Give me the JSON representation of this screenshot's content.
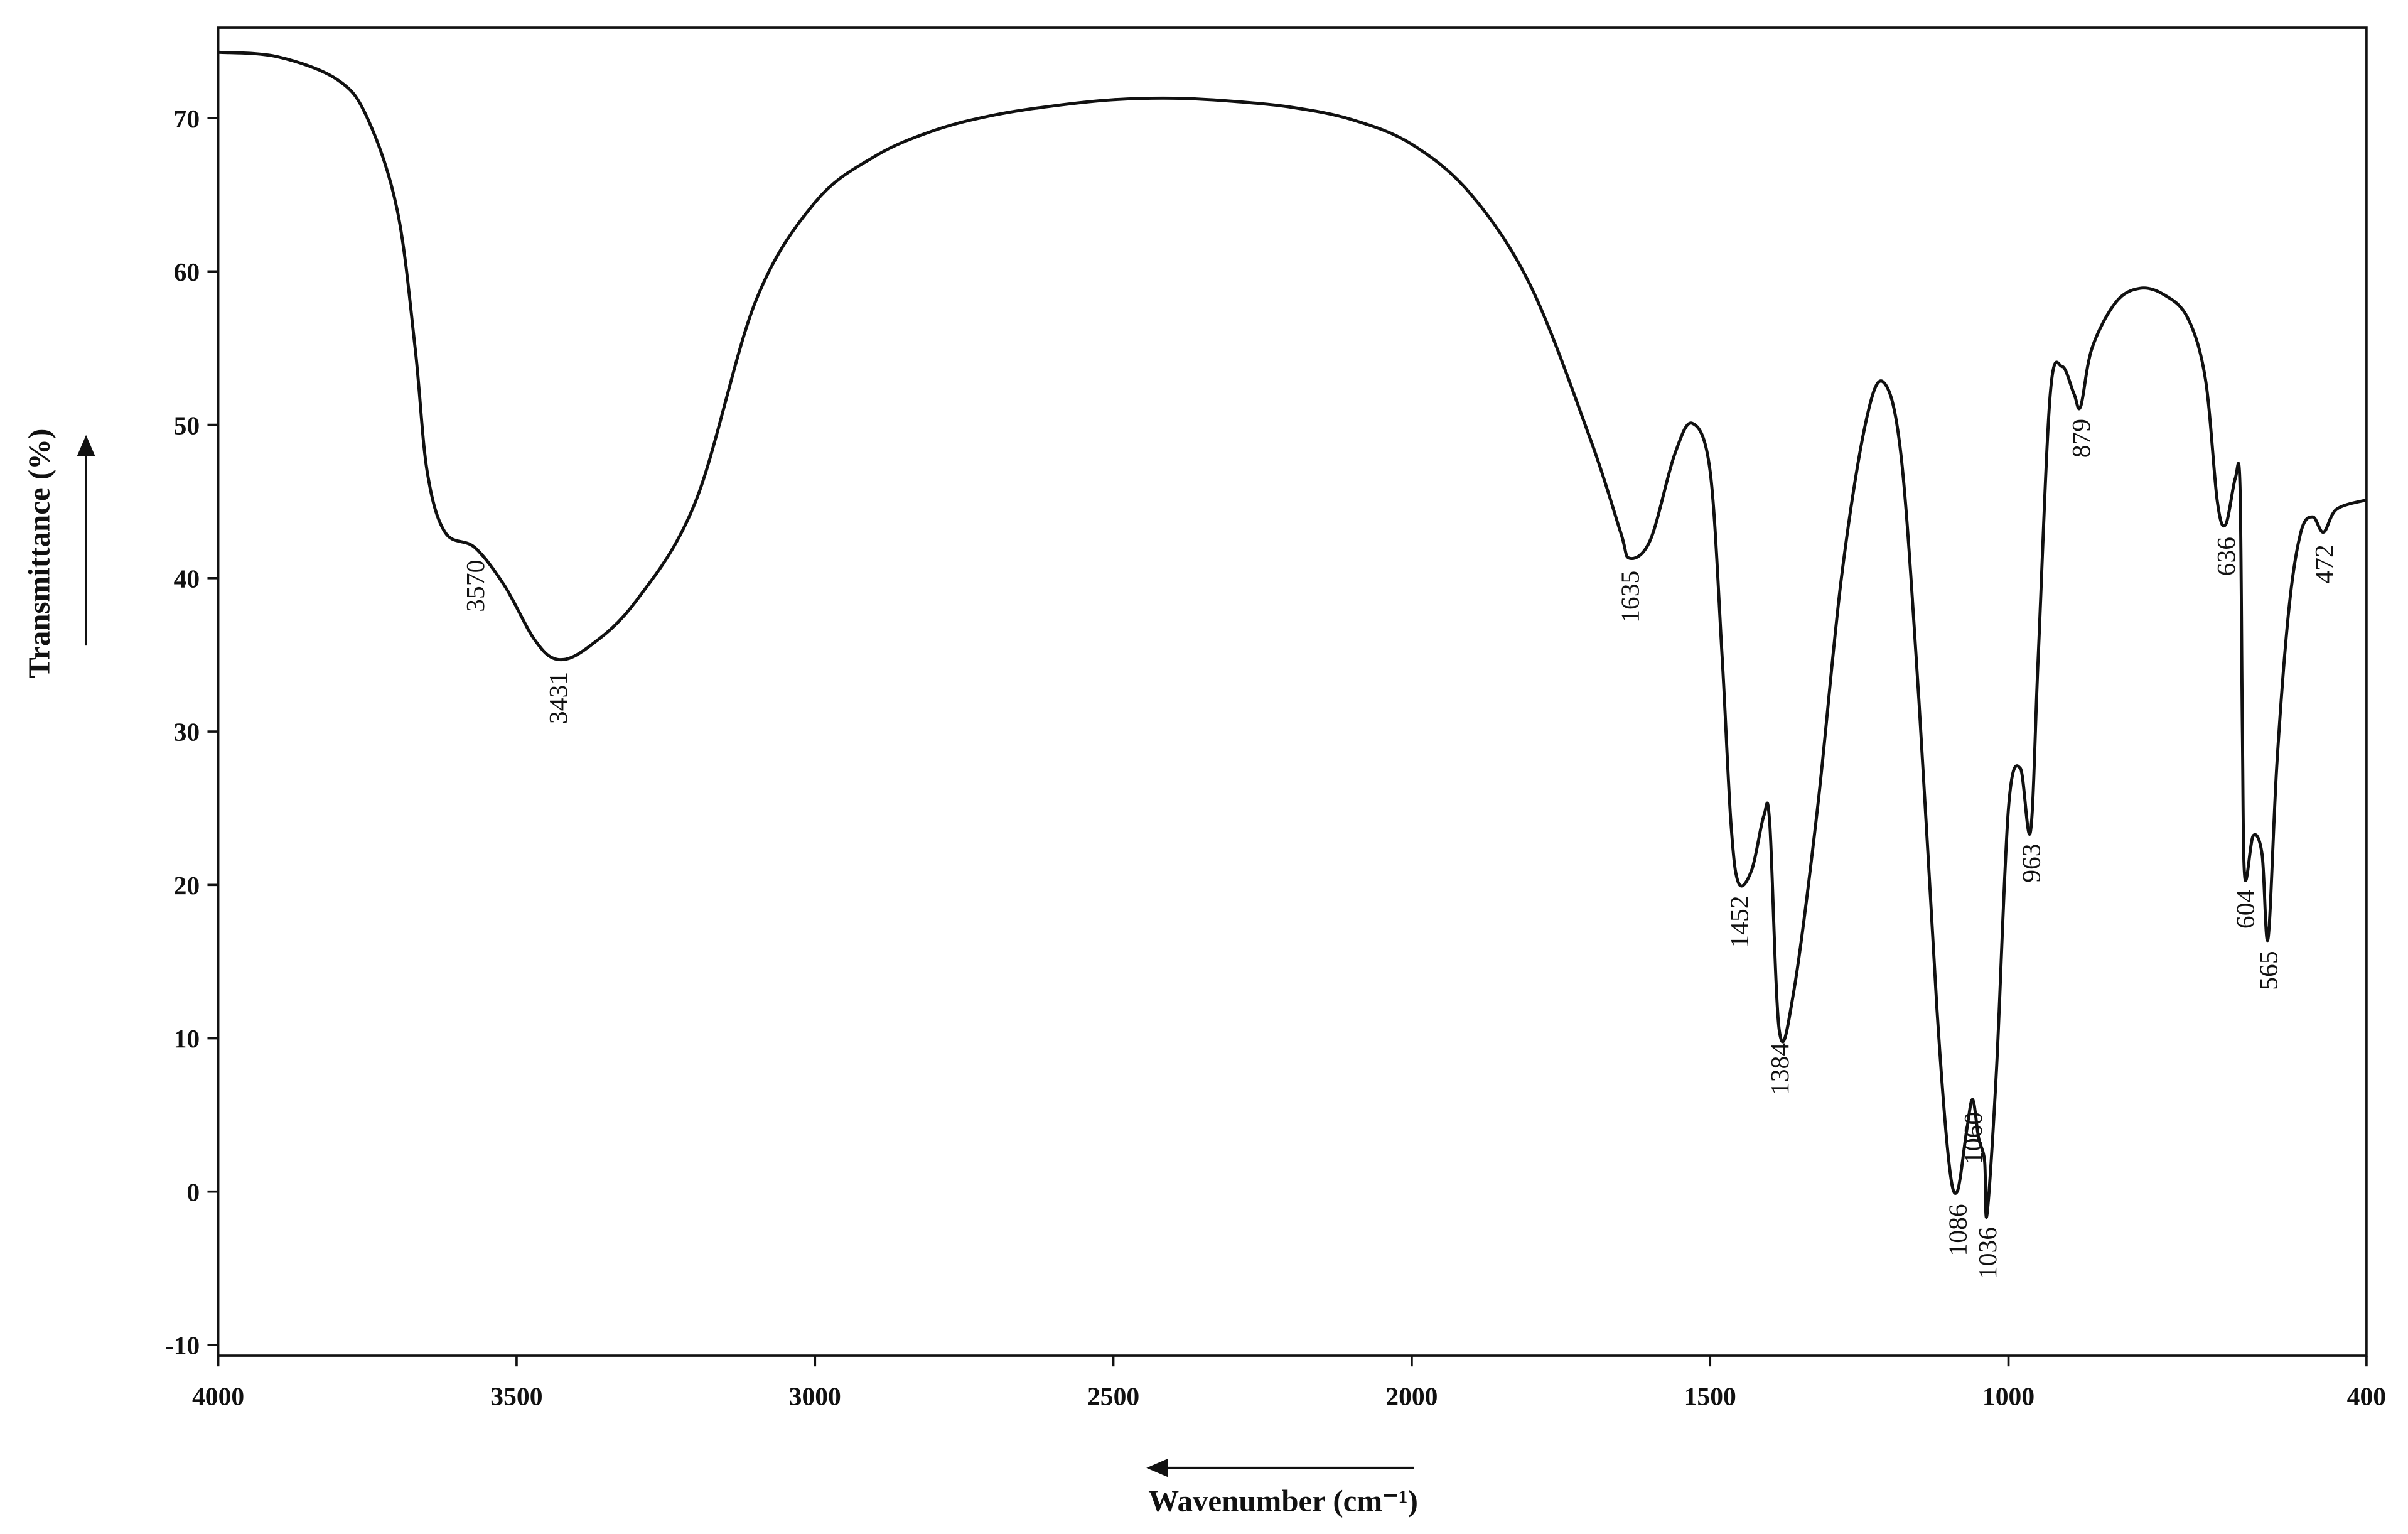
{
  "chart_data": {
    "type": "line",
    "xlabel": "Wavenumber (cm⁻¹)",
    "ylabel": "Transmittance (%)",
    "xlim": [
      4000,
      400
    ],
    "ylim": [
      -10.7,
      75.9
    ],
    "xticks": [
      4000,
      3500,
      3000,
      2500,
      2000,
      1500,
      1000,
      400
    ],
    "yticks": [
      -10,
      0,
      10,
      20,
      30,
      40,
      50,
      60,
      70
    ],
    "color": "#111111",
    "x": [
      4000,
      3900,
      3800,
      3750,
      3700,
      3670,
      3650,
      3620,
      3570,
      3520,
      3470,
      3431,
      3380,
      3300,
      3200,
      3100,
      3000,
      2900,
      2800,
      2700,
      2600,
      2500,
      2400,
      2300,
      2200,
      2100,
      2000,
      1900,
      1800,
      1700,
      1650,
      1635,
      1600,
      1560,
      1530,
      1500,
      1480,
      1465,
      1452,
      1430,
      1410,
      1400,
      1384,
      1360,
      1320,
      1280,
      1240,
      1210,
      1180,
      1150,
      1120,
      1100,
      1086,
      1070,
      1060,
      1050,
      1040,
      1036,
      1020,
      1000,
      980,
      963,
      950,
      930,
      910,
      890,
      879,
      860,
      820,
      780,
      740,
      700,
      670,
      650,
      636,
      620,
      612,
      608,
      604,
      590,
      575,
      565,
      550,
      530,
      510,
      490,
      472,
      450,
      400
    ],
    "y": [
      74.3,
      74.0,
      72.5,
      70,
      64,
      55,
      47,
      43,
      42,
      39.5,
      36,
      34.7,
      35.5,
      38.5,
      45,
      58,
      64.5,
      67.5,
      69.2,
      70.2,
      70.8,
      71.2,
      71.3,
      71.1,
      70.7,
      69.9,
      68.3,
      65,
      59,
      49,
      43,
      41.3,
      42.5,
      48,
      50.1,
      47,
      35,
      24,
      20.1,
      21,
      24.5,
      24,
      10.5,
      13,
      25,
      40,
      50,
      52.8,
      48,
      32,
      12,
      2,
      0,
      4,
      6,
      3.5,
      2,
      -1.5,
      8,
      25,
      27.6,
      23.5,
      35,
      52,
      53.8,
      52,
      51.2,
      55,
      58,
      58.9,
      58.5,
      57,
      53,
      45,
      43.5,
      46.5,
      46,
      30,
      20.5,
      23.2,
      22,
      16.5,
      28,
      38,
      43,
      44,
      43,
      44.5,
      45.1
    ],
    "annotations": [
      "3570",
      "3431",
      "1635",
      "1452",
      "1384",
      "1086",
      "1060",
      "1036",
      "963",
      "879",
      "636",
      "604",
      "565",
      "472"
    ]
  }
}
